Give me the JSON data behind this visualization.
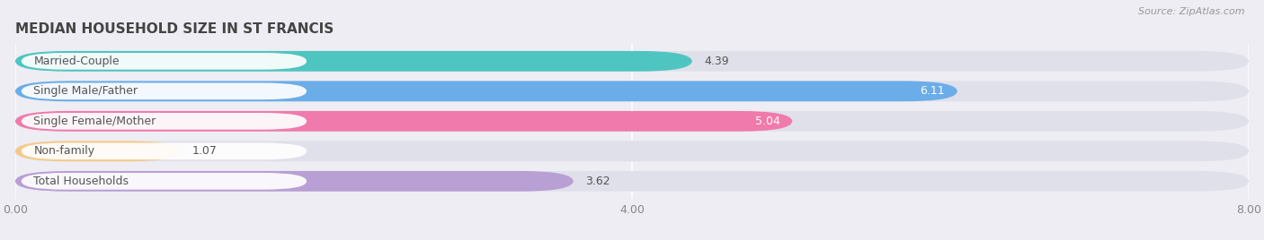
{
  "title": "MEDIAN HOUSEHOLD SIZE IN ST FRANCIS",
  "source": "Source: ZipAtlas.com",
  "categories": [
    "Married-Couple",
    "Single Male/Father",
    "Single Female/Mother",
    "Non-family",
    "Total Households"
  ],
  "values": [
    4.39,
    6.11,
    5.04,
    1.07,
    3.62
  ],
  "bar_colors": [
    "#4ec5c1",
    "#6aade8",
    "#f07aab",
    "#f5c98a",
    "#b89fd4"
  ],
  "value_inside": [
    false,
    true,
    true,
    false,
    false
  ],
  "xlim": [
    0,
    8.0
  ],
  "xticks": [
    0.0,
    4.0,
    8.0
  ],
  "xtick_labels": [
    "0.00",
    "4.00",
    "8.00"
  ],
  "background_color": "#ededf3",
  "bar_bg_color": "#e0e0ea",
  "title_fontsize": 11,
  "tick_fontsize": 9,
  "label_fontsize": 9,
  "value_fontsize": 9,
  "bar_height": 0.68,
  "bar_spacing": 1.0
}
